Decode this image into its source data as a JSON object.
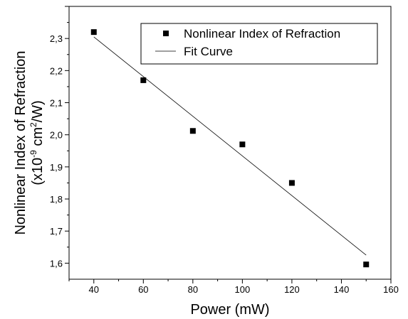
{
  "chart_data": {
    "type": "scatter",
    "xlabel": "Power (mW)",
    "ylabel": {
      "line1": "Nonlinear Index of Refraction",
      "line2_prefix": "(x10",
      "line2_exp1": "-9",
      "line2_mid": " cm",
      "line2_exp2": "2",
      "line2_suffix": "/W)"
    },
    "xlim": [
      30,
      160
    ],
    "ylim": [
      1.55,
      2.4
    ],
    "x_ticks": [
      40,
      60,
      80,
      100,
      120,
      140,
      160
    ],
    "y_ticks": [
      1.6,
      1.7,
      1.8,
      1.9,
      2.0,
      2.1,
      2.2,
      2.3
    ],
    "x_tick_labels": [
      "40",
      "60",
      "80",
      "100",
      "120",
      "140",
      "160"
    ],
    "y_tick_labels": [
      "1,6",
      "1,7",
      "1,8",
      "1,9",
      "2,0",
      "2,1",
      "2,2",
      "2,3"
    ],
    "grid": false,
    "legend_position": "top-right",
    "series": [
      {
        "name": "Nonlinear Index of Refraction",
        "kind": "scatter",
        "marker": "square",
        "color": "#000000",
        "x": [
          40,
          60,
          80,
          100,
          120,
          150
        ],
        "y": [
          2.32,
          2.17,
          2.012,
          1.97,
          1.85,
          1.596
        ]
      },
      {
        "name": "Fit Curve",
        "kind": "line",
        "color": "#000000",
        "x": [
          40,
          150
        ],
        "y": [
          2.305,
          1.625
        ]
      }
    ]
  }
}
